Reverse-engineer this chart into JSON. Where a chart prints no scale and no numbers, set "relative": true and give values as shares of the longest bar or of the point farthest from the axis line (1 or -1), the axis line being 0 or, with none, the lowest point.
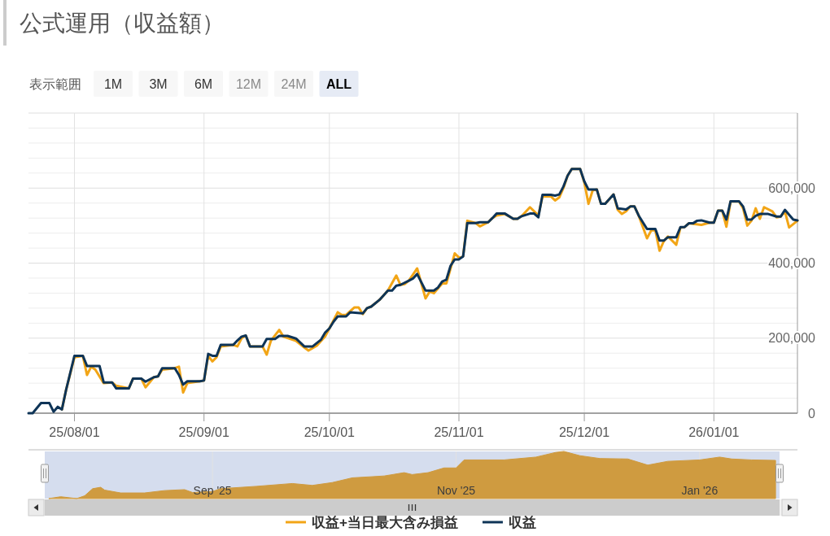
{
  "chart_data": [
    {
      "type": "line",
      "title": "公式運用（収益額）",
      "annotations": [
        "表示範囲",
        "1M",
        "3M",
        "6M",
        "12M",
        "24M",
        "ALL"
      ],
      "xlim": [
        "2025-07-21",
        "2026-01-21"
      ],
      "xticks": [
        {
          "value": "2025-08-01",
          "label": "25/08/01"
        },
        {
          "value": "2025-09-01",
          "label": "25/09/01"
        },
        {
          "value": "2025-10-01",
          "label": "25/10/01"
        },
        {
          "value": "2025-11-01",
          "label": "25/11/01"
        },
        {
          "value": "2025-12-01",
          "label": "25/12/01"
        },
        {
          "value": "2026-01-01",
          "label": "26/01/01"
        }
      ],
      "ylim": [
        0,
        800000
      ],
      "yticks": [
        0,
        {
          "value": 40000,
          "label": null
        },
        {
          "value": 80000,
          "label": null
        },
        {
          "value": 120000,
          "label": null
        },
        {
          "value": 160000,
          "label": null
        },
        {
          "value": 200000,
          "label": "200,000"
        },
        {
          "value": 240000,
          "label": null
        },
        {
          "value": 280000,
          "label": null
        },
        {
          "value": 320000,
          "label": null
        },
        {
          "value": 360000,
          "label": null
        },
        {
          "value": 400000,
          "label": "400,000"
        },
        {
          "value": 440000,
          "label": null
        },
        {
          "value": 480000,
          "label": null
        },
        {
          "value": 520000,
          "label": null
        },
        {
          "value": 560000,
          "label": null
        },
        {
          "value": 600000,
          "label": "600,000"
        },
        {
          "value": 640000,
          "label": null
        },
        {
          "value": 680000,
          "label": null
        },
        {
          "value": 720000,
          "label": null
        },
        {
          "value": 760000,
          "label": null
        },
        {
          "value": 800000,
          "label": null
        }
      ],
      "grid": true,
      "legend": "bottom",
      "series": [
        {
          "name": "収益+当日最大含み損益",
          "color": "#f2a516",
          "x": [
            "2025-07-29",
            "2025-07-30",
            "2025-08-01",
            "2025-08-03",
            "2025-08-04",
            "2025-08-05",
            "2025-08-06",
            "2025-08-08",
            "2025-08-10",
            "2025-08-11",
            "2025-08-14",
            "2025-08-15",
            "2025-08-17",
            "2025-08-18",
            "2025-08-20",
            "2025-08-21",
            "2025-08-22",
            "2025-08-25",
            "2025-08-26",
            "2025-08-27",
            "2025-08-28",
            "2025-08-31",
            "2025-09-01",
            "2025-09-02",
            "2025-09-03",
            "2025-09-04",
            "2025-09-05",
            "2025-09-08",
            "2025-09-09",
            "2025-09-10",
            "2025-09-11",
            "2025-09-12",
            "2025-09-15",
            "2025-09-16",
            "2025-09-17",
            "2025-09-19",
            "2025-09-20",
            "2025-09-23",
            "2025-09-25",
            "2025-09-26",
            "2025-09-28",
            "2025-09-30",
            "2025-10-01",
            "2025-10-03",
            "2025-10-04",
            "2025-10-05",
            "2025-10-07",
            "2025-10-08",
            "2025-10-09",
            "2025-10-10",
            "2025-10-11",
            "2025-10-13",
            "2025-10-15",
            "2025-10-17",
            "2025-10-18",
            "2025-10-19",
            "2025-10-20",
            "2025-10-22",
            "2025-10-24",
            "2025-10-25",
            "2025-10-26",
            "2025-10-28",
            "2025-10-29",
            "2025-10-31",
            "2025-11-01",
            "2025-11-02",
            "2025-11-03",
            "2025-11-05",
            "2025-11-06",
            "2025-11-08",
            "2025-11-09",
            "2025-11-10",
            "2025-11-12",
            "2025-11-14",
            "2025-11-15",
            "2025-11-16",
            "2025-11-18",
            "2025-11-20",
            "2025-11-21",
            "2025-11-23",
            "2025-11-24",
            "2025-11-25",
            "2025-11-26",
            "2025-11-27",
            "2025-11-28",
            "2025-11-30",
            "2025-12-01",
            "2025-12-02",
            "2025-12-03",
            "2025-12-04",
            "2025-12-05",
            "2025-12-06",
            "2025-12-08",
            "2025-12-09",
            "2025-12-10",
            "2025-12-11",
            "2025-12-12",
            "2025-12-13",
            "2025-12-14",
            "2025-12-16",
            "2025-12-17",
            "2025-12-18",
            "2025-12-19",
            "2025-12-20",
            "2025-12-21",
            "2025-12-23",
            "2025-12-24",
            "2025-12-25",
            "2025-12-26",
            "2025-12-29",
            "2025-12-31",
            "2026-01-01",
            "2026-01-02",
            "2026-01-03",
            "2026-01-04",
            "2026-01-05",
            "2026-01-07",
            "2026-01-08",
            "2026-01-09",
            "2026-01-10",
            "2026-01-11",
            "2026-01-12",
            "2026-01-13",
            "2026-01-15",
            "2026-01-16",
            "2026-01-17",
            "2026-01-18",
            "2026-01-19",
            "2026-01-21"
          ],
          "values": [
            10000,
            62000,
            149000,
            153000,
            102000,
            124000,
            116000,
            80000,
            82000,
            73000,
            66000,
            92000,
            92000,
            69000,
            96000,
            98000,
            116000,
            120000,
            124000,
            55000,
            80000,
            85000,
            87000,
            153000,
            138000,
            149000,
            178000,
            182000,
            178000,
            200000,
            207000,
            178000,
            178000,
            156000,
            193000,
            222000,
            204000,
            193000,
            175000,
            167000,
            180000,
            205000,
            226000,
            269000,
            262000,
            262000,
            282000,
            282000,
            264000,
            280000,
            284000,
            302000,
            327000,
            367000,
            342000,
            344000,
            353000,
            386000,
            306000,
            324000,
            320000,
            346000,
            346000,
            426000,
            415000,
            418000,
            513000,
            507000,
            498000,
            509000,
            520000,
            527000,
            531000,
            518000,
            518000,
            525000,
            549000,
            527000,
            578000,
            578000,
            567000,
            575000,
            600000,
            633000,
            651000,
            651000,
            615000,
            558000,
            594000,
            596000,
            558000,
            558000,
            583000,
            542000,
            531000,
            538000,
            551000,
            551000,
            527000,
            466000,
            487000,
            487000,
            433000,
            458000,
            471000,
            449000,
            495000,
            496000,
            506000,
            502000,
            508000,
            508000,
            540000,
            540000,
            497000,
            564000,
            565000,
            546000,
            500000,
            513000,
            546000,
            518000,
            549000,
            538000,
            522000,
            524000,
            538000,
            495000,
            513000
          ]
        },
        {
          "name": "収益",
          "color": "#0e3457",
          "x": [
            "2025-07-21",
            "2025-07-22",
            "2025-07-24",
            "2025-07-26",
            "2025-07-27",
            "2025-07-28",
            "2025-07-29",
            "2025-07-30",
            "2025-08-01",
            "2025-08-03",
            "2025-08-04",
            "2025-08-07",
            "2025-08-08",
            "2025-08-10",
            "2025-08-11",
            "2025-08-14",
            "2025-08-15",
            "2025-08-17",
            "2025-08-18",
            "2025-08-20",
            "2025-08-21",
            "2025-08-22",
            "2025-08-25",
            "2025-08-26",
            "2025-08-27",
            "2025-08-28",
            "2025-08-31",
            "2025-09-01",
            "2025-09-02",
            "2025-09-03",
            "2025-09-04",
            "2025-09-05",
            "2025-09-08",
            "2025-09-09",
            "2025-09-10",
            "2025-09-11",
            "2025-09-12",
            "2025-09-15",
            "2025-09-16",
            "2025-09-18",
            "2025-09-19",
            "2025-09-21",
            "2025-09-23",
            "2025-09-25",
            "2025-09-27",
            "2025-09-29",
            "2025-09-30",
            "2025-10-01",
            "2025-10-02",
            "2025-10-03",
            "2025-10-05",
            "2025-10-06",
            "2025-10-09",
            "2025-10-10",
            "2025-10-11",
            "2025-10-13",
            "2025-10-15",
            "2025-10-16",
            "2025-10-17",
            "2025-10-18",
            "2025-10-20",
            "2025-10-21",
            "2025-10-22",
            "2025-10-24",
            "2025-10-26",
            "2025-10-27",
            "2025-10-28",
            "2025-10-29",
            "2025-10-30",
            "2025-10-31",
            "2025-11-01",
            "2025-11-02",
            "2025-11-03",
            "2025-11-05",
            "2025-11-06",
            "2025-11-08",
            "2025-11-09",
            "2025-11-10",
            "2025-11-12",
            "2025-11-14",
            "2025-11-15",
            "2025-11-16",
            "2025-11-18",
            "2025-11-19",
            "2025-11-20",
            "2025-11-21",
            "2025-11-23",
            "2025-11-24",
            "2025-11-25",
            "2025-11-26",
            "2025-11-27",
            "2025-11-28",
            "2025-11-30",
            "2025-12-01",
            "2025-12-02",
            "2025-12-04",
            "2025-12-05",
            "2025-12-06",
            "2025-12-08",
            "2025-12-09",
            "2025-12-11",
            "2025-12-12",
            "2025-12-13",
            "2025-12-14",
            "2025-12-16",
            "2025-12-18",
            "2025-12-19",
            "2025-12-20",
            "2025-12-21",
            "2025-12-23",
            "2025-12-24",
            "2025-12-25",
            "2025-12-26",
            "2025-12-27",
            "2025-12-28",
            "2025-12-29",
            "2025-12-31",
            "2026-01-01",
            "2026-01-02",
            "2026-01-03",
            "2026-01-04",
            "2026-01-05",
            "2026-01-07",
            "2026-01-08",
            "2026-01-09",
            "2026-01-10",
            "2026-01-11",
            "2026-01-12",
            "2026-01-14",
            "2026-01-16",
            "2026-01-17",
            "2026-01-18",
            "2026-01-20",
            "2026-01-21"
          ],
          "values": [
            0,
            0,
            27000,
            27000,
            4000,
            17000,
            10000,
            62000,
            153000,
            153000,
            126000,
            126000,
            82000,
            82000,
            66000,
            66000,
            92000,
            92000,
            84000,
            96000,
            98000,
            120000,
            120000,
            102000,
            76000,
            85000,
            85000,
            87000,
            158000,
            153000,
            153000,
            182000,
            182000,
            194000,
            204000,
            207000,
            178000,
            178000,
            198000,
            198000,
            206000,
            206000,
            199000,
            178000,
            178000,
            196000,
            215000,
            226000,
            244000,
            258000,
            258000,
            269000,
            266000,
            280000,
            284000,
            302000,
            327000,
            327000,
            340000,
            342000,
            353000,
            359000,
            371000,
            327000,
            327000,
            335000,
            351000,
            356000,
            393000,
            410000,
            410000,
            418000,
            507000,
            507000,
            509000,
            509000,
            520000,
            532000,
            532000,
            518000,
            518000,
            525000,
            532000,
            532000,
            522000,
            582000,
            582000,
            580000,
            583000,
            604000,
            633000,
            651000,
            651000,
            618000,
            596000,
            596000,
            558000,
            558000,
            583000,
            546000,
            543000,
            551000,
            551000,
            527000,
            491000,
            491000,
            460000,
            460000,
            469000,
            469000,
            496000,
            496000,
            506000,
            506000,
            513000,
            514000,
            508000,
            508000,
            540000,
            540000,
            516000,
            565000,
            565000,
            551000,
            516000,
            516000,
            526000,
            531000,
            531000,
            524000,
            524000,
            542000,
            516000,
            514000
          ]
        }
      ]
    },
    {
      "type": "area",
      "relative": true,
      "color": "#cf9b40",
      "grid": "x",
      "tick_labels": "x",
      "xlim": [
        "2025-07-21",
        "2026-01-21"
      ],
      "xticks": [
        {
          "value": "2025-09-01",
          "label": "Sep '25"
        },
        {
          "value": "2025-11-01",
          "label": "Nov '25"
        },
        {
          "value": "2026-01-01",
          "label": "Jan '26"
        }
      ],
      "x": [
        "2025-07-22",
        "2025-07-25",
        "2025-07-29",
        "2025-07-31",
        "2025-08-02",
        "2025-08-04",
        "2025-08-05",
        "2025-08-09",
        "2025-08-15",
        "2025-08-20",
        "2025-08-25",
        "2025-08-27",
        "2025-09-01",
        "2025-09-03",
        "2025-09-12",
        "2025-09-21",
        "2025-09-26",
        "2025-10-01",
        "2025-10-06",
        "2025-10-14",
        "2025-10-19",
        "2025-10-21",
        "2025-10-25",
        "2025-10-29",
        "2025-11-01",
        "2025-11-03",
        "2025-11-13",
        "2025-11-21",
        "2025-11-26",
        "2025-11-28",
        "2025-12-02",
        "2025-12-07",
        "2025-12-14",
        "2025-12-19",
        "2025-12-24",
        "2026-01-01",
        "2026-01-06",
        "2026-01-09",
        "2026-01-14",
        "2026-01-20"
      ],
      "values": [
        0,
        0.04,
        0,
        0.06,
        0.21,
        0.24,
        0.18,
        0.12,
        0.12,
        0.17,
        0.19,
        0.13,
        0.15,
        0.21,
        0.26,
        0.32,
        0.28,
        0.34,
        0.44,
        0.48,
        0.55,
        0.51,
        0.55,
        0.65,
        0.65,
        0.82,
        0.82,
        0.88,
        0.98,
        1,
        0.91,
        0.85,
        0.84,
        0.71,
        0.79,
        0.82,
        0.88,
        0.84,
        0.82,
        0.81
      ]
    }
  ]
}
